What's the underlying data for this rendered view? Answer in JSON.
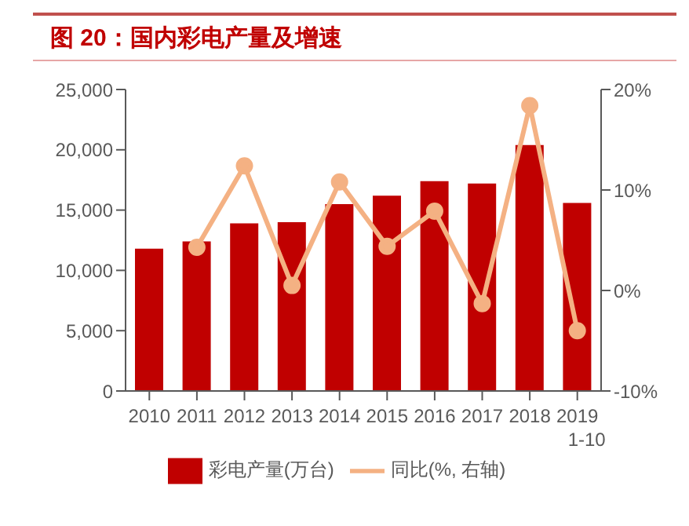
{
  "chart_data": {
    "type": "bar",
    "title": "图 20：国内彩电产量及增速",
    "categories": [
      "2010",
      "2011",
      "2012",
      "2013",
      "2014",
      "2015",
      "2016",
      "2017",
      "2018",
      "2019\n1-10"
    ],
    "series": [
      {
        "name": "彩电产量(万台)",
        "color": "#c00000",
        "values": [
          11800,
          12400,
          13900,
          14000,
          15500,
          16200,
          17400,
          17200,
          20400,
          15600
        ]
      },
      {
        "name": "同比(%, 右轴)",
        "type": "line",
        "axis": "y2",
        "color": "#f4b183",
        "marker": "circle",
        "values": [
          null,
          4.3,
          12.4,
          0.5,
          10.8,
          4.4,
          7.9,
          -1.3,
          18.4,
          -4.0
        ]
      }
    ],
    "ylim": [
      0,
      25000
    ],
    "yticks": [
      {
        "value": 0,
        "label": "0"
      },
      {
        "value": 5000,
        "label": "5,000"
      },
      {
        "value": 10000,
        "label": "10,000"
      },
      {
        "value": 15000,
        "label": "15,000"
      },
      {
        "value": 20000,
        "label": "20,000"
      },
      {
        "value": 25000,
        "label": "25,000"
      }
    ],
    "y2lim": [
      -10,
      20
    ],
    "y2ticks": [
      {
        "value": -10,
        "label": "-10%"
      },
      {
        "value": 0,
        "label": "0%"
      },
      {
        "value": 10,
        "label": "10%"
      },
      {
        "value": 20,
        "label": "20%"
      }
    ],
    "grid": false,
    "legend": "bottom"
  }
}
